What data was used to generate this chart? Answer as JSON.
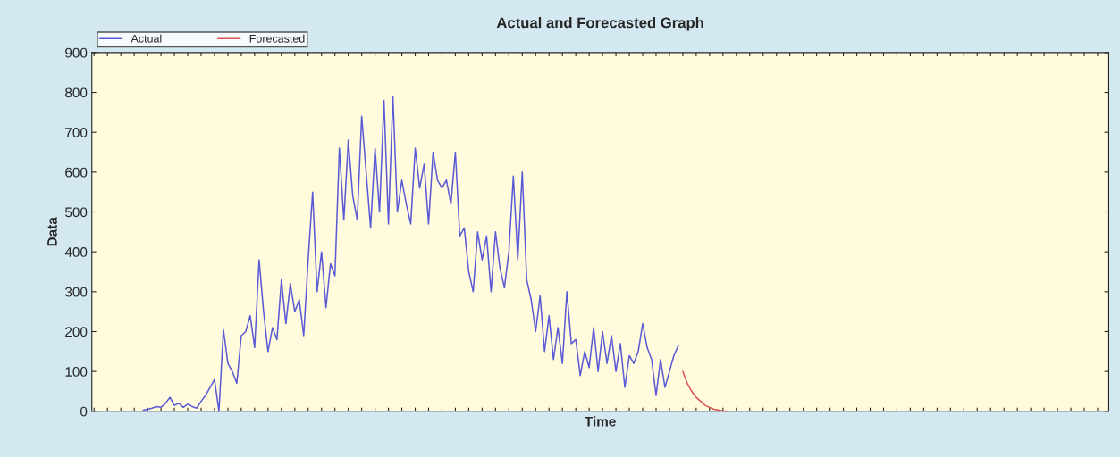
{
  "chart_data": {
    "type": "line",
    "title": "Actual and Forecasted Graph",
    "xlabel": "Time",
    "ylabel": "Data",
    "categories": [
      null,
      null,
      null,
      null,
      null,
      null,
      null,
      null,
      null,
      null,
      null,
      null,
      null,
      null,
      null,
      null,
      null,
      null,
      null,
      null,
      null,
      null,
      null,
      null,
      null,
      null,
      null,
      null,
      null,
      null,
      null,
      null,
      null,
      null,
      null,
      null,
      null,
      null,
      null,
      null,
      null,
      null,
      null,
      null,
      null,
      null,
      null,
      null,
      null,
      null,
      null,
      null,
      null,
      null,
      null,
      null,
      null,
      null,
      null,
      null,
      null,
      null,
      null,
      null,
      null,
      null,
      null,
      null,
      null,
      null,
      null,
      null,
      null,
      null,
      null,
      null,
      null,
      null,
      null,
      null,
      null,
      null,
      null,
      null,
      null,
      null,
      null,
      null,
      null,
      null,
      null,
      null,
      null,
      null,
      null,
      null,
      null,
      null,
      null,
      null,
      null,
      null,
      null,
      null,
      null,
      null,
      null,
      null,
      null,
      null,
      null,
      null,
      null,
      null,
      null,
      null,
      null,
      null,
      null,
      null,
      null,
      null,
      null,
      null,
      null,
      null,
      null,
      null,
      null,
      null,
      null,
      null,
      null,
      null,
      null,
      null,
      null,
      null,
      null,
      null,
      null,
      null,
      null,
      null,
      null,
      null,
      null,
      null,
      null,
      null,
      null,
      null,
      null,
      null,
      null,
      null,
      null,
      null,
      null,
      null,
      null,
      null,
      null,
      null,
      null,
      null,
      null,
      null,
      null,
      null,
      null,
      null,
      null,
      null,
      null,
      null,
      null,
      null,
      null,
      null,
      null,
      null,
      null,
      null,
      null,
      null,
      null,
      null,
      null,
      null,
      null,
      null,
      null,
      null,
      null,
      null,
      null,
      null,
      null,
      null,
      null,
      null,
      null,
      null,
      null,
      null,
      null,
      null,
      null,
      null,
      null,
      null,
      null,
      null,
      null,
      null,
      null,
      null,
      null,
      null,
      null,
      null,
      null,
      null,
      null,
      null,
      null,
      null
    ],
    "series": [
      {
        "name": "Actual",
        "color": "#5a5ad6",
        "values": [
          null,
          null,
          null,
          null,
          null,
          null,
          null,
          null,
          null,
          null,
          null,
          3,
          5,
          8,
          12,
          10,
          20,
          35,
          15,
          20,
          10,
          18,
          12,
          8,
          25,
          40,
          60,
          80,
          0,
          205,
          120,
          100,
          70,
          190,
          200,
          240,
          160,
          380,
          250,
          150,
          210,
          180,
          330,
          220,
          320,
          250,
          280,
          190,
          380,
          550,
          300,
          400,
          260,
          370,
          340,
          660,
          480,
          680,
          540,
          480,
          740,
          600,
          460,
          660,
          500,
          780,
          470,
          790,
          500,
          580,
          520,
          470,
          660,
          560,
          620,
          470,
          650,
          580,
          560,
          580,
          520,
          650,
          440,
          460,
          350,
          300,
          450,
          380,
          440,
          300,
          450,
          360,
          310,
          400,
          590,
          380,
          600,
          330,
          280,
          200,
          290,
          150,
          240,
          130,
          210,
          120,
          300,
          170,
          180,
          90,
          150,
          110,
          210,
          100,
          200,
          120,
          190,
          100,
          170,
          60,
          140,
          120,
          150,
          220,
          160,
          130,
          40,
          130,
          60,
          100,
          140,
          165,
          null,
          null,
          null,
          null,
          null,
          null,
          null,
          null,
          null,
          null,
          null,
          null,
          null,
          null,
          null,
          null,
          null,
          null,
          null,
          null,
          null,
          null,
          null,
          null,
          null,
          null,
          null,
          null,
          null,
          null,
          null,
          null,
          null,
          null,
          null,
          null,
          null,
          null,
          null,
          null,
          null,
          null,
          null,
          null,
          null,
          null,
          null,
          null,
          null,
          null,
          null,
          null,
          null,
          null,
          null,
          null,
          null,
          null,
          null,
          null,
          null,
          null,
          null,
          null,
          null,
          null,
          null,
          null,
          null,
          null,
          null,
          null,
          null,
          null,
          null,
          null,
          null,
          null,
          null,
          null,
          null,
          null,
          null,
          null,
          null,
          null,
          null,
          null,
          null,
          null,
          null,
          null,
          null,
          null,
          null,
          null
        ]
      },
      {
        "name": "Forecasted",
        "color": "#d9534f",
        "values": [
          null,
          null,
          null,
          null,
          null,
          null,
          null,
          null,
          null,
          null,
          null,
          null,
          null,
          null,
          null,
          null,
          null,
          null,
          null,
          null,
          null,
          null,
          null,
          null,
          null,
          null,
          null,
          null,
          null,
          null,
          null,
          null,
          null,
          null,
          null,
          null,
          null,
          null,
          null,
          null,
          null,
          null,
          null,
          null,
          null,
          null,
          null,
          null,
          null,
          null,
          null,
          null,
          null,
          null,
          null,
          null,
          null,
          null,
          null,
          null,
          null,
          null,
          null,
          null,
          null,
          null,
          null,
          null,
          null,
          null,
          null,
          null,
          null,
          null,
          null,
          null,
          null,
          null,
          null,
          null,
          null,
          null,
          null,
          null,
          null,
          null,
          null,
          null,
          null,
          null,
          null,
          null,
          null,
          null,
          null,
          null,
          null,
          null,
          null,
          null,
          null,
          null,
          null,
          null,
          null,
          null,
          null,
          null,
          null,
          null,
          null,
          null,
          null,
          null,
          null,
          null,
          null,
          null,
          null,
          null,
          null,
          null,
          null,
          null,
          null,
          null,
          null,
          null,
          null,
          null,
          null,
          null,
          100,
          70,
          50,
          35,
          25,
          15,
          10,
          5,
          3,
          1,
          0,
          null,
          null,
          null,
          null,
          null,
          null,
          null,
          null,
          null,
          null,
          null,
          null,
          null,
          null,
          null,
          null,
          null,
          null,
          null,
          null,
          null,
          null,
          null,
          null,
          null,
          null,
          null,
          null,
          null,
          null,
          null,
          null,
          null,
          null,
          null,
          null,
          null,
          null,
          null,
          null,
          null,
          null,
          null,
          null,
          null,
          null,
          null,
          null,
          null,
          null,
          null,
          null,
          null,
          null,
          null,
          null,
          null,
          null,
          null,
          null,
          null,
          null,
          null,
          null,
          null,
          null,
          null,
          null,
          null,
          null,
          null,
          null,
          null,
          null,
          null,
          null,
          null,
          null,
          null,
          null,
          null,
          null,
          null,
          null,
          null
        ]
      }
    ],
    "ylim": [
      0,
      900
    ],
    "yticks": [
      0,
      100,
      200,
      300,
      400,
      500,
      600,
      700,
      800,
      900
    ],
    "tick_labels": "y",
    "legend": "top left",
    "grid": false,
    "marker": "none",
    "line_style": "solid"
  }
}
